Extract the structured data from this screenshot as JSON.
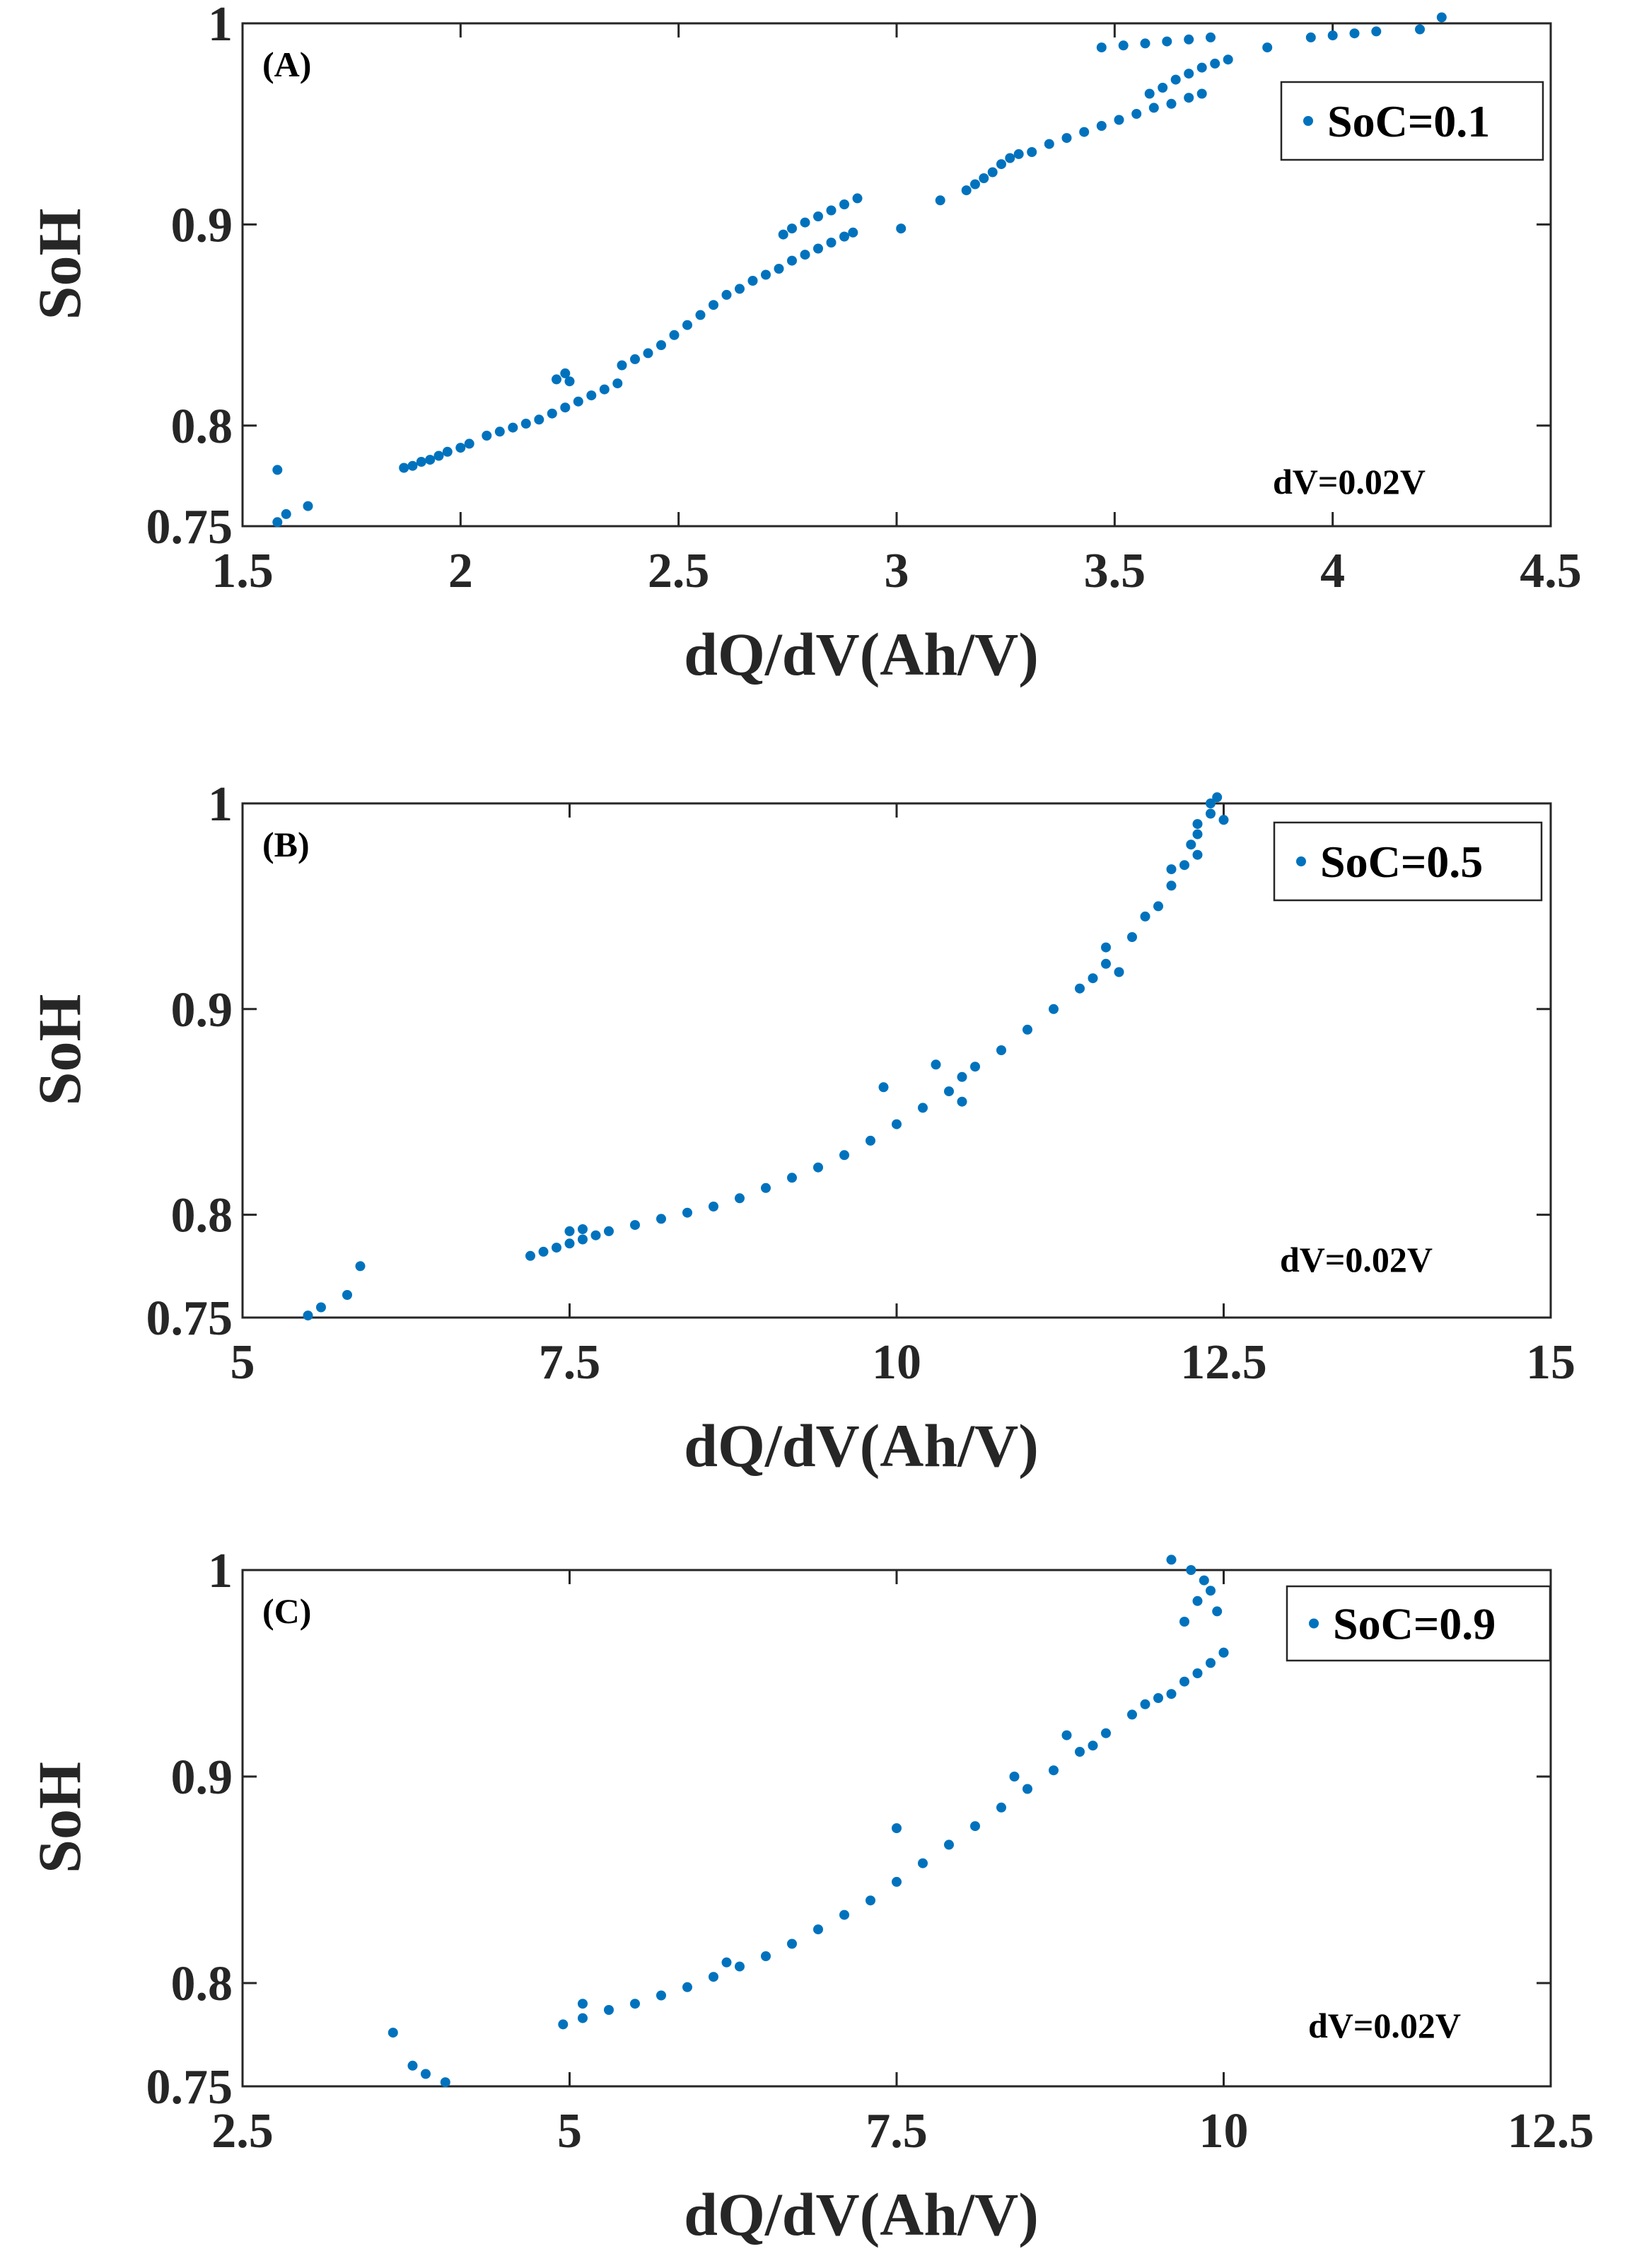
{
  "chart_data": [
    {
      "type": "scatter",
      "panel_label": "(A)",
      "xlabel": "dQ/dV(Ah/V)",
      "ylabel": "SoH",
      "xlim": [
        1.5,
        4.5
      ],
      "ylim": [
        0.75,
        1.0
      ],
      "xticks": [
        "1.5",
        "2",
        "2.5",
        "3",
        "3.5",
        "4",
        "4.5"
      ],
      "xtick_values": [
        1.5,
        2,
        2.5,
        3,
        3.5,
        4,
        4.5
      ],
      "yticks": [
        "0.75",
        "0.8",
        "0.9",
        "1"
      ],
      "ytick_values": [
        0.75,
        0.8,
        0.9,
        1.0
      ],
      "legend": "SoC=0.1",
      "annotation": "dV=0.02V",
      "color": "#0072BD",
      "series": [
        {
          "name": "SoC=0.1",
          "points": [
            [
              1.58,
              0.752
            ],
            [
              1.58,
              0.778
            ],
            [
              1.6,
              0.756
            ],
            [
              1.65,
              0.76
            ],
            [
              1.87,
              0.779
            ],
            [
              1.89,
              0.78
            ],
            [
              1.91,
              0.782
            ],
            [
              1.93,
              0.783
            ],
            [
              1.95,
              0.785
            ],
            [
              1.97,
              0.787
            ],
            [
              2.0,
              0.789
            ],
            [
              2.02,
              0.791
            ],
            [
              2.06,
              0.795
            ],
            [
              2.09,
              0.797
            ],
            [
              2.12,
              0.799
            ],
            [
              2.15,
              0.801
            ],
            [
              2.18,
              0.803
            ],
            [
              2.21,
              0.806
            ],
            [
              2.24,
              0.809
            ],
            [
              2.27,
              0.812
            ],
            [
              2.3,
              0.815
            ],
            [
              2.33,
              0.818
            ],
            [
              2.36,
              0.821
            ],
            [
              2.22,
              0.823
            ],
            [
              2.24,
              0.826
            ],
            [
              2.25,
              0.822
            ],
            [
              2.37,
              0.83
            ],
            [
              2.4,
              0.833
            ],
            [
              2.43,
              0.836
            ],
            [
              2.46,
              0.84
            ],
            [
              2.49,
              0.845
            ],
            [
              2.52,
              0.85
            ],
            [
              2.55,
              0.855
            ],
            [
              2.58,
              0.86
            ],
            [
              2.61,
              0.865
            ],
            [
              2.64,
              0.868
            ],
            [
              2.67,
              0.872
            ],
            [
              2.7,
              0.875
            ],
            [
              2.73,
              0.878
            ],
            [
              2.76,
              0.882
            ],
            [
              2.79,
              0.885
            ],
            [
              2.82,
              0.888
            ],
            [
              2.85,
              0.891
            ],
            [
              2.88,
              0.894
            ],
            [
              2.9,
              0.896
            ],
            [
              2.74,
              0.895
            ],
            [
              2.76,
              0.898
            ],
            [
              2.79,
              0.901
            ],
            [
              2.82,
              0.904
            ],
            [
              2.85,
              0.907
            ],
            [
              2.88,
              0.91
            ],
            [
              2.91,
              0.913
            ],
            [
              3.01,
              0.898
            ],
            [
              3.1,
              0.912
            ],
            [
              3.16,
              0.917
            ],
            [
              3.18,
              0.92
            ],
            [
              3.2,
              0.923
            ],
            [
              3.22,
              0.926
            ],
            [
              3.24,
              0.93
            ],
            [
              3.26,
              0.933
            ],
            [
              3.28,
              0.935
            ],
            [
              3.31,
              0.936
            ],
            [
              3.35,
              0.94
            ],
            [
              3.39,
              0.943
            ],
            [
              3.43,
              0.946
            ],
            [
              3.47,
              0.949
            ],
            [
              3.51,
              0.952
            ],
            [
              3.55,
              0.955
            ],
            [
              3.59,
              0.958
            ],
            [
              3.63,
              0.96
            ],
            [
              3.67,
              0.963
            ],
            [
              3.58,
              0.965
            ],
            [
              3.61,
              0.968
            ],
            [
              3.64,
              0.972
            ],
            [
              3.67,
              0.975
            ],
            [
              3.7,
              0.978
            ],
            [
              3.73,
              0.98
            ],
            [
              3.76,
              0.982
            ],
            [
              3.47,
              0.988
            ],
            [
              3.52,
              0.989
            ],
            [
              3.57,
              0.99
            ],
            [
              3.62,
              0.991
            ],
            [
              3.67,
              0.992
            ],
            [
              3.72,
              0.993
            ],
            [
              3.85,
              0.988
            ],
            [
              3.95,
              0.993
            ],
            [
              4.0,
              0.994
            ],
            [
              4.05,
              0.995
            ],
            [
              4.1,
              0.996
            ],
            [
              4.2,
              0.997
            ],
            [
              4.25,
              1.003
            ],
            [
              3.7,
              0.965
            ]
          ]
        }
      ]
    },
    {
      "type": "scatter",
      "panel_label": "(B)",
      "xlabel": "dQ/dV(Ah/V)",
      "ylabel": "SoH",
      "xlim": [
        5,
        15
      ],
      "ylim": [
        0.75,
        1.0
      ],
      "xticks": [
        "5",
        "7.5",
        "10",
        "12.5",
        "15"
      ],
      "xtick_values": [
        5,
        7.5,
        10,
        12.5,
        15
      ],
      "yticks": [
        "0.75",
        "0.8",
        "0.9",
        "1"
      ],
      "ytick_values": [
        0.75,
        0.8,
        0.9,
        1.0
      ],
      "legend": "SoC=0.5",
      "annotation": "dV=0.02V",
      "color": "#0072BD",
      "series": [
        {
          "name": "SoC=0.5",
          "points": [
            [
              5.5,
              0.751
            ],
            [
              5.6,
              0.755
            ],
            [
              5.8,
              0.761
            ],
            [
              5.9,
              0.775
            ],
            [
              7.2,
              0.78
            ],
            [
              7.3,
              0.782
            ],
            [
              7.4,
              0.784
            ],
            [
              7.5,
              0.786
            ],
            [
              7.6,
              0.788
            ],
            [
              7.7,
              0.79
            ],
            [
              7.8,
              0.792
            ],
            [
              7.5,
              0.792
            ],
            [
              7.6,
              0.793
            ],
            [
              8.0,
              0.795
            ],
            [
              8.2,
              0.798
            ],
            [
              8.4,
              0.801
            ],
            [
              8.6,
              0.804
            ],
            [
              8.8,
              0.808
            ],
            [
              9.0,
              0.813
            ],
            [
              9.2,
              0.818
            ],
            [
              9.4,
              0.823
            ],
            [
              9.6,
              0.829
            ],
            [
              9.8,
              0.836
            ],
            [
              10.0,
              0.844
            ],
            [
              10.2,
              0.852
            ],
            [
              10.4,
              0.86
            ],
            [
              10.5,
              0.867
            ],
            [
              9.9,
              0.862
            ],
            [
              10.3,
              0.873
            ],
            [
              10.5,
              0.855
            ],
            [
              10.6,
              0.872
            ],
            [
              10.8,
              0.88
            ],
            [
              11.0,
              0.89
            ],
            [
              11.2,
              0.9
            ],
            [
              11.4,
              0.91
            ],
            [
              11.6,
              0.922
            ],
            [
              11.8,
              0.935
            ],
            [
              12.0,
              0.95
            ],
            [
              12.1,
              0.96
            ],
            [
              12.2,
              0.97
            ],
            [
              12.25,
              0.98
            ],
            [
              12.3,
              0.99
            ],
            [
              12.4,
              1.0
            ],
            [
              12.45,
              1.003
            ],
            [
              11.5,
              0.915
            ],
            [
              11.7,
              0.918
            ],
            [
              11.6,
              0.93
            ],
            [
              11.9,
              0.945
            ],
            [
              12.1,
              0.968
            ],
            [
              12.3,
              0.975
            ],
            [
              12.4,
              0.995
            ],
            [
              12.5,
              0.992
            ],
            [
              12.3,
              0.985
            ]
          ]
        }
      ]
    },
    {
      "type": "scatter",
      "panel_label": "(C)",
      "xlabel": "dQ/dV(Ah/V)",
      "ylabel": "SoH",
      "xlim": [
        2.5,
        12.5
      ],
      "ylim": [
        0.75,
        1.0
      ],
      "xticks": [
        "2.5",
        "5",
        "7.5",
        "10",
        "12.5"
      ],
      "xtick_values": [
        2.5,
        5,
        7.5,
        10,
        12.5
      ],
      "yticks": [
        "0.75",
        "0.8",
        "0.9",
        "1"
      ],
      "ytick_values": [
        0.75,
        0.8,
        0.9,
        1.0
      ],
      "legend": "SoC=0.9",
      "annotation": "dV=0.02V",
      "color": "#0072BD",
      "series": [
        {
          "name": "SoC=0.9",
          "points": [
            [
              3.65,
              0.776
            ],
            [
              3.8,
              0.76
            ],
            [
              3.9,
              0.756
            ],
            [
              4.05,
              0.752
            ],
            [
              4.95,
              0.78
            ],
            [
              5.1,
              0.783
            ],
            [
              5.3,
              0.787
            ],
            [
              5.5,
              0.79
            ],
            [
              5.7,
              0.794
            ],
            [
              5.9,
              0.798
            ],
            [
              6.1,
              0.803
            ],
            [
              6.3,
              0.808
            ],
            [
              6.5,
              0.813
            ],
            [
              6.7,
              0.819
            ],
            [
              6.9,
              0.826
            ],
            [
              7.1,
              0.833
            ],
            [
              7.3,
              0.84
            ],
            [
              7.5,
              0.849
            ],
            [
              7.7,
              0.858
            ],
            [
              7.9,
              0.867
            ],
            [
              8.1,
              0.876
            ],
            [
              8.3,
              0.885
            ],
            [
              8.5,
              0.894
            ],
            [
              8.7,
              0.903
            ],
            [
              8.9,
              0.912
            ],
            [
              9.1,
              0.921
            ],
            [
              9.3,
              0.93
            ],
            [
              9.5,
              0.938
            ],
            [
              9.7,
              0.946
            ],
            [
              9.9,
              0.955
            ],
            [
              10.0,
              0.96
            ],
            [
              5.1,
              0.79
            ],
            [
              6.2,
              0.81
            ],
            [
              7.5,
              0.875
            ],
            [
              8.4,
              0.9
            ],
            [
              8.8,
              0.92
            ],
            [
              9.0,
              0.915
            ],
            [
              9.4,
              0.935
            ],
            [
              9.6,
              0.94
            ],
            [
              9.8,
              0.95
            ],
            [
              9.7,
              0.975
            ],
            [
              9.8,
              0.985
            ],
            [
              9.85,
              0.995
            ],
            [
              9.9,
              0.99
            ],
            [
              9.75,
              1.0
            ],
            [
              9.6,
              1.005
            ],
            [
              9.95,
              0.98
            ],
            [
              10.0,
              0.96
            ]
          ]
        }
      ]
    }
  ]
}
